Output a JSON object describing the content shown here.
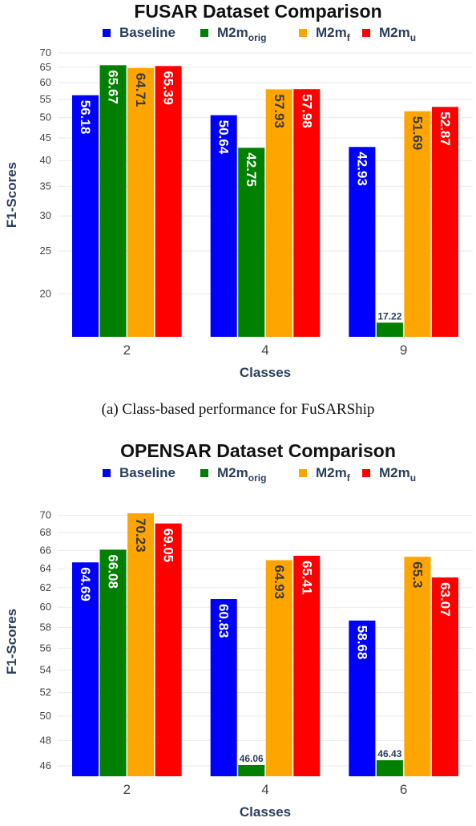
{
  "caption_a": "(a) Class-based performance for FuSARShip",
  "chart_data": [
    {
      "type": "bar",
      "title": "FUSAR Dataset Comparison",
      "xlabel": "Classes",
      "ylabel": "F1-Scores",
      "yscale": "log",
      "ylim": [
        16,
        70
      ],
      "yticks": [
        20,
        25,
        30,
        35,
        40,
        45,
        50,
        55,
        60,
        65,
        70
      ],
      "categories": [
        "2",
        "4",
        "9"
      ],
      "legend_position": "top",
      "series": [
        {
          "name": "Baseline",
          "name_main": "Baseline",
          "name_sub": "",
          "color": "#0000ff",
          "values": [
            56.18,
            50.64,
            42.93
          ]
        },
        {
          "name": "M2m_orig",
          "name_main": "M2m",
          "name_sub": "orig",
          "color": "#008000",
          "values": [
            65.67,
            42.75,
            17.22
          ]
        },
        {
          "name": "M2m_f",
          "name_main": "M2m",
          "name_sub": "f",
          "color": "#ffa500",
          "values": [
            64.71,
            57.93,
            51.69
          ]
        },
        {
          "name": "M2m_u",
          "name_main": "M2m",
          "name_sub": "u",
          "color": "#ff0000",
          "values": [
            65.39,
            57.98,
            52.87
          ]
        }
      ]
    },
    {
      "type": "bar",
      "title": "OPENSAR Dataset Comparison",
      "xlabel": "Classes",
      "ylabel": "F1-Scores",
      "yscale": "log",
      "ylim": [
        45.2,
        71
      ],
      "yticks": [
        46,
        48,
        50,
        52,
        54,
        56,
        58,
        60,
        62,
        64,
        66,
        68,
        70
      ],
      "categories": [
        "2",
        "4",
        "6"
      ],
      "legend_position": "top",
      "series": [
        {
          "name": "Baseline",
          "name_main": "Baseline",
          "name_sub": "",
          "color": "#0000ff",
          "values": [
            64.69,
            60.83,
            58.68
          ]
        },
        {
          "name": "M2m_orig",
          "name_main": "M2m",
          "name_sub": "orig",
          "color": "#008000",
          "values": [
            66.08,
            46.06,
            46.43
          ]
        },
        {
          "name": "M2m_f",
          "name_main": "M2m",
          "name_sub": "f",
          "color": "#ffa500",
          "values": [
            70.23,
            64.93,
            65.3
          ]
        },
        {
          "name": "M2m_u",
          "name_main": "M2m",
          "name_sub": "u",
          "color": "#ff0000",
          "values": [
            69.05,
            65.41,
            63.07
          ]
        }
      ]
    }
  ]
}
